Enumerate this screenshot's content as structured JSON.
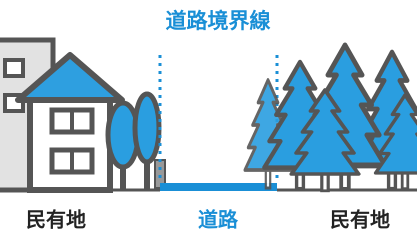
{
  "title": "道路境界線",
  "labels": {
    "left": "民有地",
    "center": "道路",
    "right": "民有地"
  }
}
